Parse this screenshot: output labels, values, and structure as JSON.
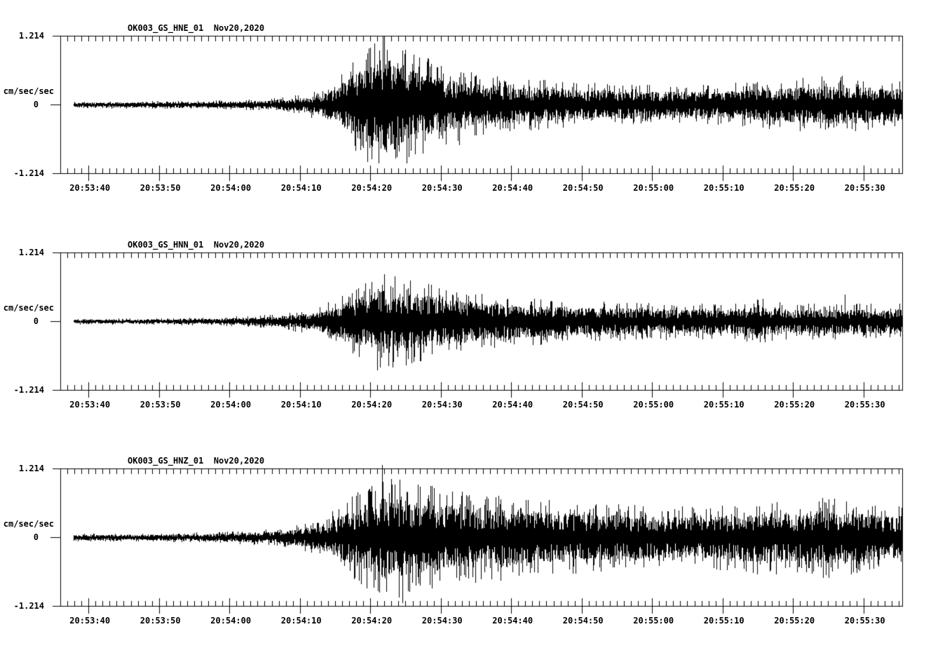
{
  "page": {
    "kind": "strong-motion accelerograph record display, three components",
    "background": "#ffffff",
    "ink": "#000000"
  },
  "chart_data": [
    {
      "type": "line",
      "subtype": "seismogram",
      "title": "OK003_GS_HNE_01  Nov20,2020",
      "station_channel": "OK003_GS_HNE_01",
      "date": "Nov20,2020",
      "ylabel": "cm/sec/sec",
      "ylim": [
        -1.214,
        1.214
      ],
      "y_ticks": [
        {
          "label": "1.214",
          "value": 1.214
        },
        {
          "label": "0",
          "value": 0
        },
        {
          "label": "-1.214",
          "value": -1.214
        }
      ],
      "x_window": {
        "start": "20:53:36",
        "end": "20:55:36",
        "duration_s": 120,
        "major_tick_s": 10,
        "minor_tick_s": 1
      },
      "x_ticks": [
        {
          "label": "20:53:40",
          "t": 4
        },
        {
          "label": "20:53:50",
          "t": 14
        },
        {
          "label": "20:54:00",
          "t": 24
        },
        {
          "label": "20:54:10",
          "t": 34
        },
        {
          "label": "20:54:20",
          "t": 44
        },
        {
          "label": "20:54:30",
          "t": 54
        },
        {
          "label": "20:54:40",
          "t": 64
        },
        {
          "label": "20:54:50",
          "t": 74
        },
        {
          "label": "20:55:00",
          "t": 84
        },
        {
          "label": "20:55:10",
          "t": 94
        },
        {
          "label": "20:55:20",
          "t": 104
        },
        {
          "label": "20:55:30",
          "t": 114
        }
      ],
      "grid": false,
      "seed": 101,
      "max_abs_amplitude": 1.03,
      "envelope": [
        [
          2,
          0.037
        ],
        [
          12,
          0.04
        ],
        [
          22,
          0.048
        ],
        [
          28,
          0.06
        ],
        [
          32,
          0.085
        ],
        [
          35,
          0.12
        ],
        [
          37,
          0.17
        ],
        [
          39,
          0.26
        ],
        [
          41,
          0.44
        ],
        [
          43,
          0.6
        ],
        [
          44.5,
          0.7
        ],
        [
          46,
          0.75
        ],
        [
          47.5,
          0.7
        ],
        [
          49,
          0.64
        ],
        [
          51,
          0.54
        ],
        [
          53,
          0.48
        ],
        [
          55,
          0.42
        ],
        [
          58,
          0.35
        ],
        [
          61,
          0.31
        ],
        [
          65,
          0.28
        ],
        [
          70,
          0.26
        ],
        [
          76,
          0.24
        ],
        [
          82,
          0.22
        ],
        [
          88,
          0.21
        ],
        [
          94,
          0.22
        ],
        [
          100,
          0.26
        ],
        [
          104,
          0.28
        ],
        [
          108,
          0.3
        ],
        [
          112,
          0.32
        ],
        [
          116,
          0.27
        ],
        [
          119.5,
          0.26
        ]
      ],
      "notable_peaks": [
        {
          "t": 46.4,
          "amp": 0.97
        },
        {
          "t": 43.4,
          "amp": 0.8
        },
        {
          "t": 52.6,
          "amp": 0.72
        },
        {
          "t": 54.0,
          "amp": 0.68
        },
        {
          "t": 45.2,
          "amp": -1.02
        },
        {
          "t": 47.6,
          "amp": -0.88
        },
        {
          "t": 41.8,
          "amp": -0.72
        },
        {
          "t": 56.6,
          "amp": -0.7
        }
      ]
    },
    {
      "type": "line",
      "subtype": "seismogram",
      "title": "OK003_GS_HNN_01  Nov20,2020",
      "station_channel": "OK003_GS_HNN_01",
      "date": "Nov20,2020",
      "ylabel": "cm/sec/sec",
      "ylim": [
        -1.214,
        1.214
      ],
      "y_ticks": [
        {
          "label": "1.214",
          "value": 1.214
        },
        {
          "label": "0",
          "value": 0
        },
        {
          "label": "-1.214",
          "value": -1.214
        }
      ],
      "x_window": {
        "start": "20:53:36",
        "end": "20:55:36",
        "duration_s": 120,
        "major_tick_s": 10,
        "minor_tick_s": 1
      },
      "x_ticks": [
        {
          "label": "20:53:40",
          "t": 4
        },
        {
          "label": "20:53:50",
          "t": 14
        },
        {
          "label": "20:54:00",
          "t": 24
        },
        {
          "label": "20:54:10",
          "t": 34
        },
        {
          "label": "20:54:20",
          "t": 44
        },
        {
          "label": "20:54:30",
          "t": 54
        },
        {
          "label": "20:54:40",
          "t": 64
        },
        {
          "label": "20:54:50",
          "t": 74
        },
        {
          "label": "20:55:00",
          "t": 84
        },
        {
          "label": "20:55:10",
          "t": 94
        },
        {
          "label": "20:55:20",
          "t": 104
        },
        {
          "label": "20:55:30",
          "t": 114
        }
      ],
      "grid": false,
      "seed": 202,
      "max_abs_amplitude": 0.86,
      "envelope": [
        [
          2,
          0.03
        ],
        [
          12,
          0.034
        ],
        [
          22,
          0.045
        ],
        [
          28,
          0.065
        ],
        [
          32,
          0.09
        ],
        [
          35,
          0.13
        ],
        [
          37,
          0.17
        ],
        [
          39,
          0.24
        ],
        [
          41,
          0.33
        ],
        [
          43,
          0.42
        ],
        [
          45,
          0.49
        ],
        [
          46.5,
          0.52
        ],
        [
          48,
          0.49
        ],
        [
          50,
          0.45
        ],
        [
          52,
          0.42
        ],
        [
          55,
          0.37
        ],
        [
          58,
          0.33
        ],
        [
          62,
          0.29
        ],
        [
          66,
          0.26
        ],
        [
          72,
          0.23
        ],
        [
          80,
          0.21
        ],
        [
          88,
          0.2
        ],
        [
          95,
          0.19
        ],
        [
          97.5,
          0.22
        ],
        [
          99,
          0.27
        ],
        [
          100.5,
          0.22
        ],
        [
          104,
          0.19
        ],
        [
          108,
          0.19
        ],
        [
          112,
          0.2
        ],
        [
          116,
          0.19
        ],
        [
          119.5,
          0.19
        ]
      ],
      "notable_peaks": [
        {
          "t": 46.0,
          "amp": 0.83
        },
        {
          "t": 44.2,
          "amp": 0.7
        },
        {
          "t": 48.8,
          "amp": 0.66
        },
        {
          "t": 45.0,
          "amp": -0.85
        },
        {
          "t": 47.3,
          "amp": -0.7
        },
        {
          "t": 50.2,
          "amp": -0.62
        },
        {
          "t": 111.3,
          "amp": 0.48
        },
        {
          "t": 99.0,
          "amp": 0.38
        }
      ]
    },
    {
      "type": "line",
      "subtype": "seismogram",
      "title": "OK003_GS_HNZ_01  Nov20,2020",
      "station_channel": "OK003_GS_HNZ_01",
      "date": "Nov20,2020",
      "ylabel": "cm/sec/sec",
      "ylim": [
        -1.214,
        1.214
      ],
      "y_ticks": [
        {
          "label": "1.214",
          "value": 1.214
        },
        {
          "label": "0",
          "value": 0
        },
        {
          "label": "-1.214",
          "value": -1.214
        }
      ],
      "x_window": {
        "start": "20:53:36",
        "end": "20:55:36",
        "duration_s": 120,
        "major_tick_s": 10,
        "minor_tick_s": 1
      },
      "x_ticks": [
        {
          "label": "20:53:40",
          "t": 4
        },
        {
          "label": "20:53:50",
          "t": 14
        },
        {
          "label": "20:54:00",
          "t": 24
        },
        {
          "label": "20:54:10",
          "t": 34
        },
        {
          "label": "20:54:20",
          "t": 44
        },
        {
          "label": "20:54:30",
          "t": 54
        },
        {
          "label": "20:54:40",
          "t": 64
        },
        {
          "label": "20:54:50",
          "t": 74
        },
        {
          "label": "20:55:00",
          "t": 84
        },
        {
          "label": "20:55:10",
          "t": 94
        },
        {
          "label": "20:55:20",
          "t": 104
        },
        {
          "label": "20:55:30",
          "t": 114
        }
      ],
      "grid": false,
      "seed": 303,
      "max_abs_amplitude": 1.27,
      "envelope": [
        [
          2,
          0.04
        ],
        [
          12,
          0.045
        ],
        [
          20,
          0.055
        ],
        [
          27,
          0.075
        ],
        [
          31,
          0.1
        ],
        [
          34,
          0.14
        ],
        [
          37,
          0.21
        ],
        [
          39,
          0.3
        ],
        [
          41,
          0.42
        ],
        [
          43,
          0.54
        ],
        [
          45,
          0.64
        ],
        [
          46.5,
          0.68
        ],
        [
          48,
          0.65
        ],
        [
          50,
          0.6
        ],
        [
          53,
          0.55
        ],
        [
          56,
          0.52
        ],
        [
          60,
          0.48
        ],
        [
          65,
          0.44
        ],
        [
          70,
          0.41
        ],
        [
          75,
          0.38
        ],
        [
          80,
          0.36
        ],
        [
          85,
          0.34
        ],
        [
          90,
          0.33
        ],
        [
          95,
          0.36
        ],
        [
          98,
          0.4
        ],
        [
          100,
          0.42
        ],
        [
          102,
          0.39
        ],
        [
          105,
          0.38
        ],
        [
          107,
          0.42
        ],
        [
          109,
          0.44
        ],
        [
          111,
          0.41
        ],
        [
          114,
          0.38
        ],
        [
          117,
          0.36
        ],
        [
          119.5,
          0.35
        ]
      ],
      "notable_peaks": [
        {
          "t": 45.7,
          "amp": 1.27
        },
        {
          "t": 47.5,
          "amp": 0.93
        },
        {
          "t": 43.8,
          "amp": 0.85
        },
        {
          "t": 49.3,
          "amp": 0.8
        },
        {
          "t": 48.6,
          "amp": -1.15
        },
        {
          "t": 46.3,
          "amp": -0.95
        },
        {
          "t": 44.5,
          "amp": -0.88
        },
        {
          "t": 52.4,
          "amp": -0.82
        },
        {
          "t": 108.5,
          "amp": 0.62
        },
        {
          "t": 99.2,
          "amp": 0.55
        }
      ]
    }
  ]
}
